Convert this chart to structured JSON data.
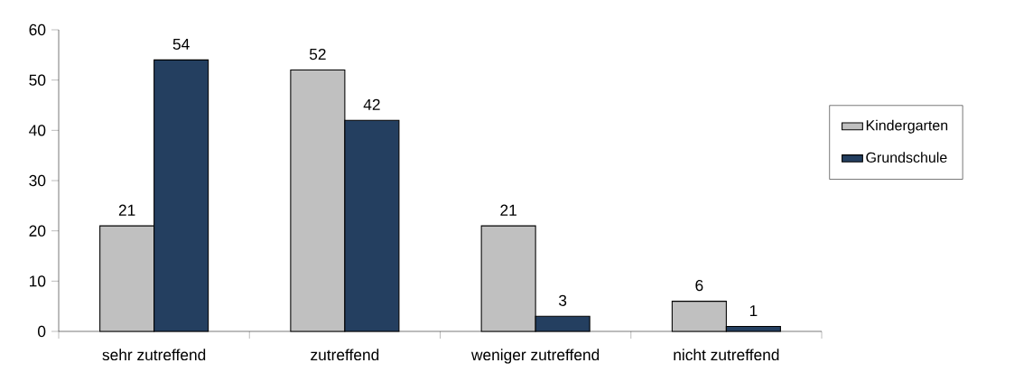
{
  "chart_data": {
    "type": "bar",
    "categories": [
      "sehr zutreffend",
      "zutreffend",
      "weniger zutreffend",
      "nicht zutreffend"
    ],
    "series": [
      {
        "name": "Kindergarten",
        "color": "#c0c0c0",
        "values": [
          21,
          52,
          21,
          6
        ]
      },
      {
        "name": "Grundschule",
        "color": "#243f60",
        "values": [
          54,
          42,
          3,
          1
        ]
      }
    ],
    "ylim": [
      0,
      60
    ],
    "yticks": [
      0,
      10,
      20,
      30,
      40,
      50,
      60
    ],
    "data_labels": true,
    "legend": "right"
  }
}
